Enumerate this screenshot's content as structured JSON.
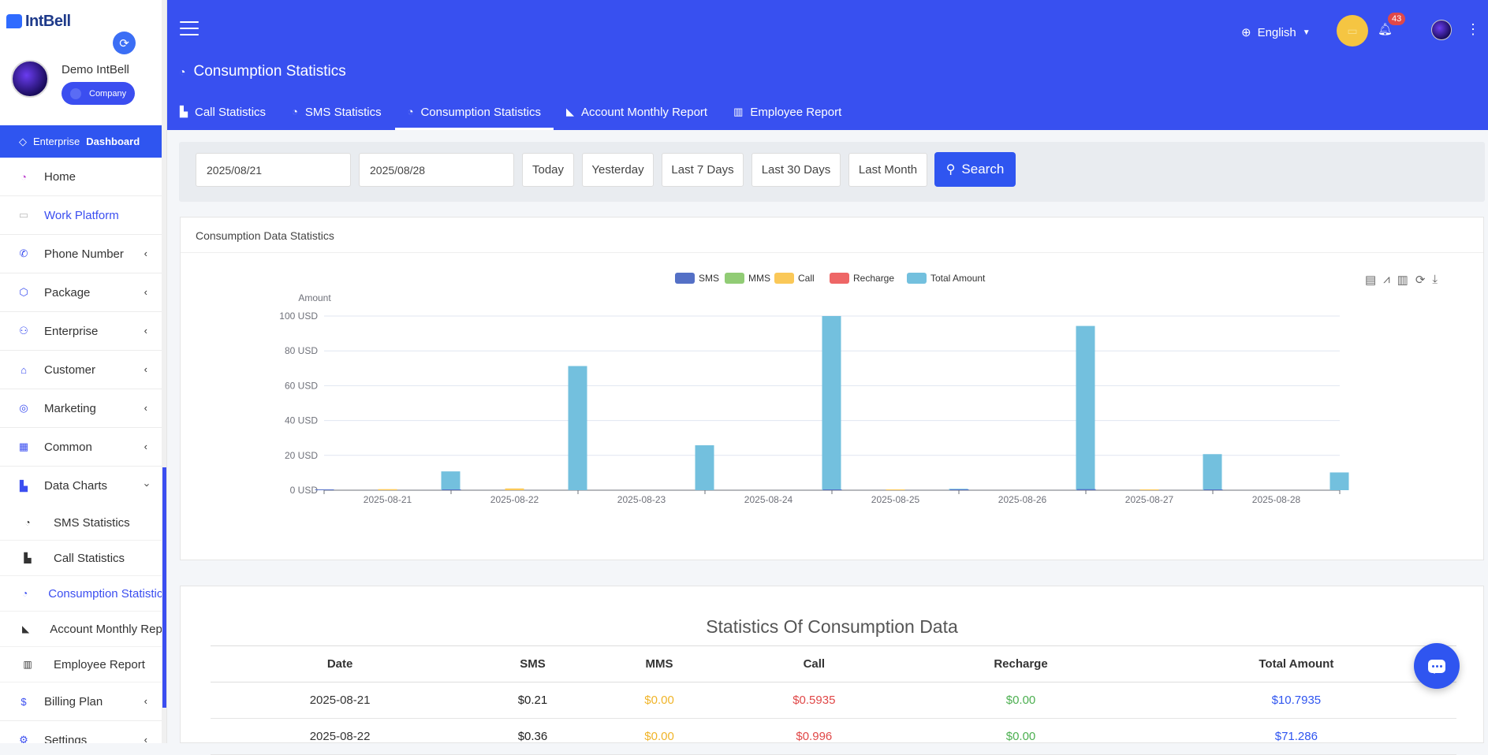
{
  "brand": {
    "name": "IntBell"
  },
  "user": {
    "name": "Demo IntBell",
    "role": "Company"
  },
  "enterprise_bar": {
    "prefix": "Enterprise",
    "bold": "Dashboard"
  },
  "sidebar": {
    "items": [
      {
        "label": "Home",
        "icon": "speedometer-icon"
      },
      {
        "label": "Work Platform",
        "icon": "laptop-icon"
      },
      {
        "label": "Phone Number",
        "icon": "phone-icon"
      },
      {
        "label": "Package",
        "icon": "cube-icon"
      },
      {
        "label": "Enterprise",
        "icon": "sitemap-icon"
      },
      {
        "label": "Customer",
        "icon": "store-icon"
      },
      {
        "label": "Marketing",
        "icon": "target-icon"
      },
      {
        "label": "Common",
        "icon": "grid-icon"
      },
      {
        "label": "Data Charts",
        "icon": "bar-chart-icon"
      }
    ],
    "sub_items": [
      {
        "label": "SMS Statistics"
      },
      {
        "label": "Call Statistics"
      },
      {
        "label": "Consumption Statistics"
      },
      {
        "label": "Account Monthly Report"
      },
      {
        "label": "Employee Report"
      }
    ],
    "after_items": [
      {
        "label": "Billing Plan"
      },
      {
        "label": "Settings"
      }
    ]
  },
  "header": {
    "title": "Consumption Statistics",
    "language": "English",
    "notification_count": "43"
  },
  "tabs": [
    {
      "label": "Call Statistics"
    },
    {
      "label": "SMS Statistics"
    },
    {
      "label": "Consumption Statistics"
    },
    {
      "label": "Account Monthly Report"
    },
    {
      "label": "Employee Report"
    }
  ],
  "filters": {
    "start_date": "2025/08/21",
    "end_date": "2025/08/28",
    "quick": [
      "Today",
      "Yesterday",
      "Last 7 Days",
      "Last 30 Days",
      "Last Month"
    ],
    "search_label": "Search"
  },
  "chart_card": {
    "title": "Consumption Data Statistics"
  },
  "colors": {
    "sms": "#5470c6",
    "mms": "#91cc75",
    "call": "#fac858",
    "recharge": "#ee6666",
    "total": "#73c0de",
    "primary": "#3850f0"
  },
  "chart_data": {
    "type": "bar",
    "ylabel": "Amount",
    "ylim": [
      0,
      100
    ],
    "y_ticks": [
      "0 USD",
      "20 USD",
      "40 USD",
      "60 USD",
      "80 USD",
      "100 USD"
    ],
    "grid": true,
    "legend_position": "top-center",
    "categories": [
      "2025-08-21",
      "2025-08-22",
      "2025-08-23",
      "2025-08-24",
      "2025-08-25",
      "2025-08-26",
      "2025-08-27",
      "2025-08-28"
    ],
    "series": [
      {
        "name": "SMS",
        "values": [
          0.21,
          0.36,
          0,
          0,
          0.2,
          0.3,
          0.6,
          0.1
        ]
      },
      {
        "name": "MMS",
        "values": [
          0,
          0,
          0,
          0,
          0,
          0,
          0,
          0
        ]
      },
      {
        "name": "Call",
        "values": [
          0.5935,
          0.996,
          0,
          0,
          0.3,
          0,
          0.2,
          0
        ]
      },
      {
        "name": "Recharge",
        "values": [
          0,
          0,
          0,
          0,
          0,
          0,
          0,
          0
        ]
      },
      {
        "name": "Total Amount",
        "values": [
          10.7935,
          71.286,
          25.8,
          100,
          0.8,
          94.3,
          20.7,
          10.2
        ]
      }
    ]
  },
  "table": {
    "title": "Statistics Of Consumption Data",
    "headers": [
      "Date",
      "SMS",
      "MMS",
      "Call",
      "Recharge",
      "Total Amount"
    ],
    "rows": [
      [
        "2025-08-21",
        "$0.21",
        "$0.00",
        "$0.5935",
        "$0.00",
        "$10.7935"
      ],
      [
        "2025-08-22",
        "$0.36",
        "$0.00",
        "$0.996",
        "$0.00",
        "$71.286"
      ]
    ]
  }
}
